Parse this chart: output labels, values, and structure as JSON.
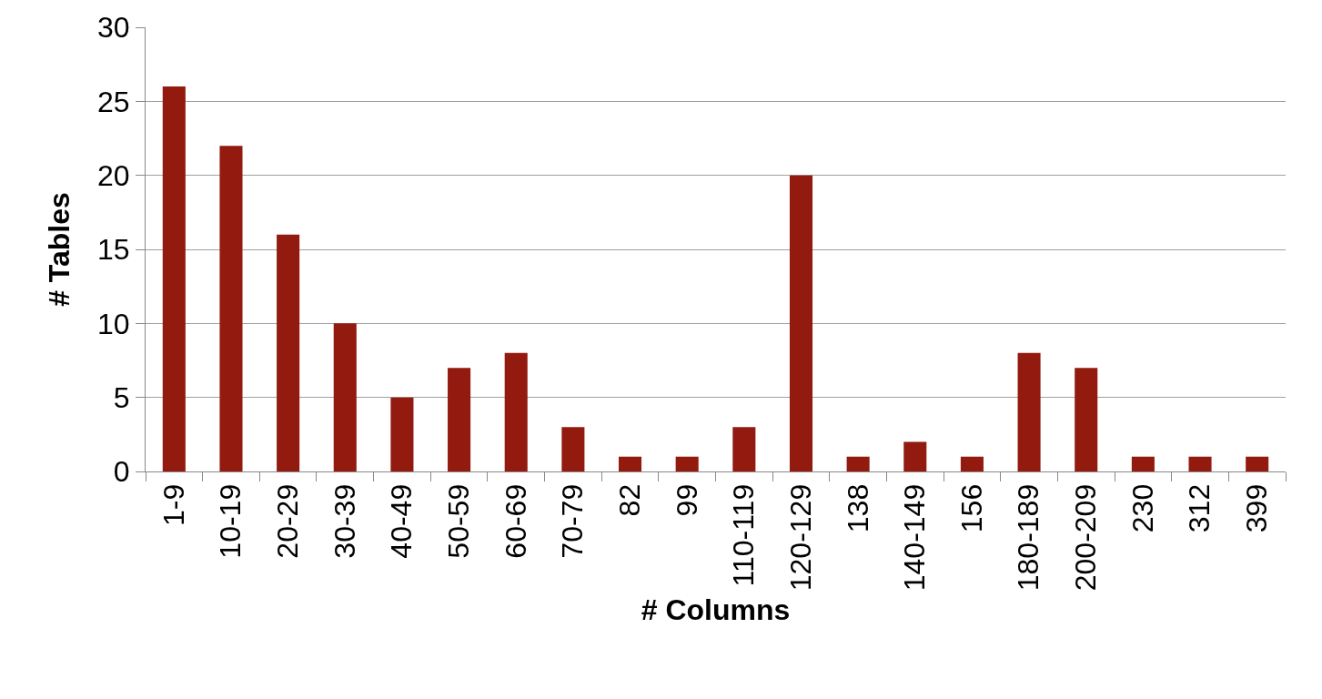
{
  "chart_data": {
    "type": "bar",
    "xlabel": "# Columns",
    "ylabel": "# Tables",
    "categories": [
      "1-9",
      "10-19",
      "20-29",
      "30-39",
      "40-49",
      "50-59",
      "60-69",
      "70-79",
      "82",
      "99",
      "110-119",
      "120-129",
      "138",
      "140-149",
      "156",
      "180-189",
      "200-209",
      "230",
      "312",
      "399"
    ],
    "values": [
      26,
      22,
      16,
      10,
      5,
      7,
      8,
      3,
      1,
      1,
      3,
      20,
      1,
      2,
      1,
      8,
      7,
      1,
      1,
      1
    ],
    "color": "#921a0e",
    "ylim": [
      0,
      30
    ],
    "yticks": [
      0,
      5,
      10,
      15,
      20,
      25,
      30
    ],
    "grid": "y"
  }
}
